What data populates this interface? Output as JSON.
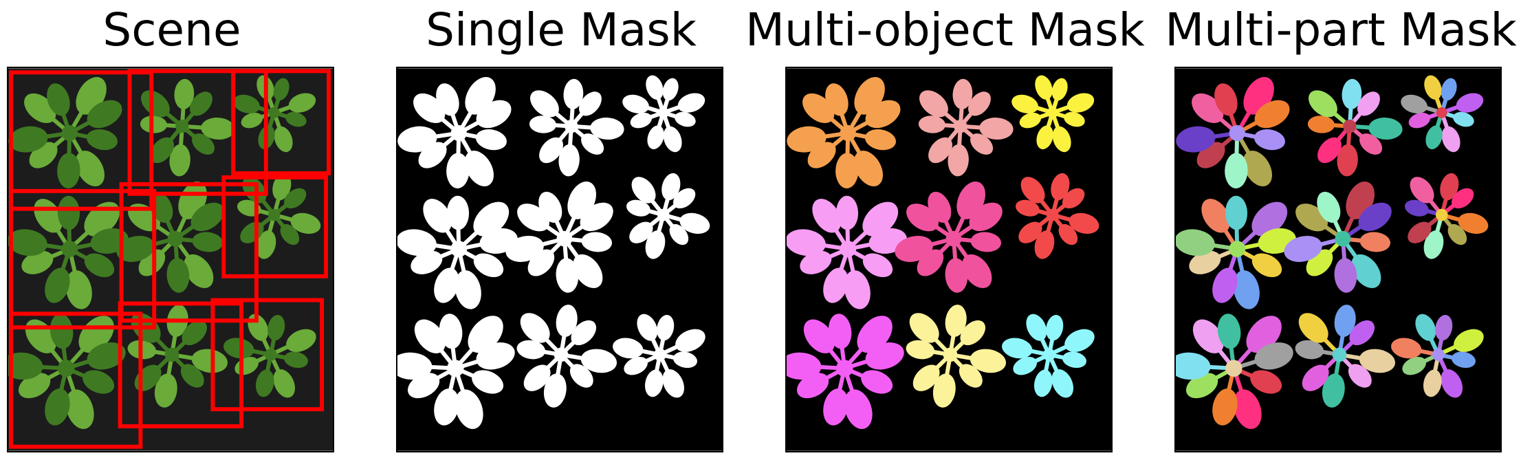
{
  "panels": [
    {
      "title": "Scene"
    },
    {
      "title": "Single Mask"
    },
    {
      "title": "Multi-object Mask"
    },
    {
      "title": "Multi-part Mask"
    }
  ],
  "colors": {
    "soil": "#1c1c1c",
    "leaf": "#6aab3a",
    "leaf_dark": "#3f7a22",
    "bbox": "#ff0000",
    "mask_bg": "#000000",
    "mask_fg": "#ffffff",
    "object_palette": [
      "#f5a04e",
      "#f2a6a6",
      "#fbf23f",
      "#f79df4",
      "#f0529e",
      "#f24a4a",
      "#f35ff5",
      "#fbf29a",
      "#8ff7fb"
    ],
    "part_palette": [
      "#a890f5",
      "#b0a850",
      "#9df5c8",
      "#c04050",
      "#6a40c8",
      "#f060a0",
      "#e04050",
      "#ff3080",
      "#f08030",
      "#9de060",
      "#80e0f0",
      "#f0a0f0",
      "#40c0a0",
      "#e060e0",
      "#a0a0a0",
      "#f0d040",
      "#70a0f0",
      "#c060f0",
      "#e8d0a0",
      "#90d080",
      "#f08060",
      "#60d0d0",
      "#b070e0",
      "#d0f040"
    ]
  }
}
